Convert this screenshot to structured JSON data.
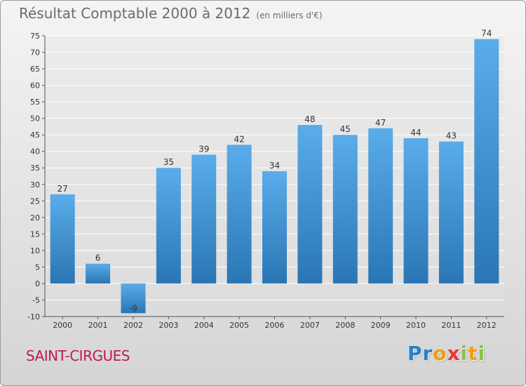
{
  "chart_data": {
    "type": "bar",
    "title": "Résultat Comptable 2000 à 2012",
    "subtitle": "(en milliers d'€)",
    "categories": [
      "2000",
      "2001",
      "2002",
      "2003",
      "2004",
      "2005",
      "2006",
      "2007",
      "2008",
      "2009",
      "2010",
      "2011",
      "2012"
    ],
    "values": [
      27,
      6,
      -9,
      35,
      39,
      42,
      34,
      48,
      45,
      47,
      44,
      43,
      74
    ],
    "data_labels": [
      "27",
      "6",
      "-9",
      "35",
      "39",
      "42",
      "34",
      "48",
      "45",
      "47",
      "44",
      "43",
      "74"
    ],
    "yticks": [
      "-10",
      "-5",
      "0",
      "5",
      "10",
      "15",
      "20",
      "25",
      "30",
      "35",
      "40",
      "45",
      "50",
      "55",
      "60",
      "65",
      "70",
      "75"
    ],
    "ylim": [
      -10,
      75
    ],
    "grid": "horizontal",
    "bar_color": "#3d8fd0"
  },
  "footer": {
    "commune": "SAINT-CIRGUES"
  },
  "logo": {
    "letters": [
      "P",
      "r",
      "o",
      "x",
      "i",
      "t",
      "i"
    ],
    "colors": [
      "#2a7fc8",
      "#2a7fc8",
      "#f39c12",
      "#e53935",
      "#8bc34a",
      "#f39c12",
      "#8bc34a"
    ]
  }
}
